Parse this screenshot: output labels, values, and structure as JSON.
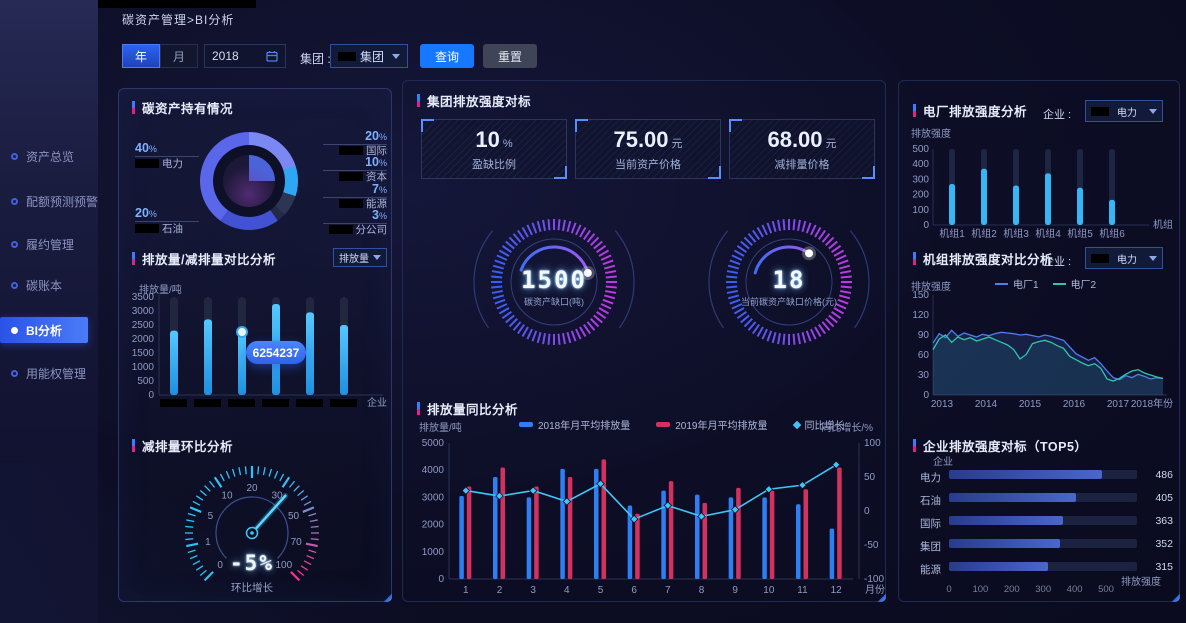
{
  "colors": {
    "accent": "#1677ff",
    "cyan_bar": "#2fa9f2",
    "blue_bar": "#2e7ef5",
    "crimson_bar": "#d3315f",
    "line_cyan": "#3fc6f5",
    "plant1": "#4f7df0",
    "plant2": "#32c5ac",
    "top5_bar": "#3d5bbf",
    "marker_blue": "#3f7bff",
    "marker_pink": "#e0218a"
  },
  "breadcrumb": "碳资产管理>BI分析",
  "filters": {
    "year_btn": "年",
    "month_btn": "月",
    "date_value": "2018",
    "group_label": "集团 :",
    "group_value": "集团",
    "query_btn": "查询",
    "reset_btn": "重置"
  },
  "sidebar": {
    "items": [
      {
        "label": "资产总览",
        "active": false
      },
      {
        "label": "配额预测预警",
        "active": false
      },
      {
        "label": "履约管理",
        "active": false
      },
      {
        "label": "碳账本",
        "active": false
      },
      {
        "label": "BI分析",
        "active": true
      },
      {
        "label": "用能权管理",
        "active": false
      }
    ]
  },
  "left_panel": {
    "holdings_title": "碳资产持有情况",
    "compare_title": "排放量/减排量对比分析",
    "compare_dropdown": "排放量",
    "compare_ylabel": "排放量/吨",
    "compare_xunit": "企业",
    "compare_tooltip": "6254237",
    "mom_title": "减排量环比分析",
    "mom_value": "-5%",
    "mom_caption": "环比增长"
  },
  "middle_panel": {
    "benchmark_title": "集团排放强度对标",
    "cards": [
      {
        "value": "10",
        "unit": "%",
        "label": "盈缺比例"
      },
      {
        "value": "75.00",
        "unit": "元",
        "label": "当前资产价格"
      },
      {
        "value": "68.00",
        "unit": "元",
        "label": "减排量价格"
      }
    ],
    "gauges": [
      {
        "value": "1500",
        "label": "碳资产缺口(吨)"
      },
      {
        "value": "18",
        "label": "当前碳资产缺口价格(元)"
      }
    ],
    "yoy_title": "排放量同比分析",
    "yoy_ylabel_left": "排放量/吨",
    "yoy_ylabel_right": "同比增长/%",
    "yoy_xunit": "月份"
  },
  "right_panel": {
    "plant_title": "电厂排放强度分析",
    "ent_label": "企业 :",
    "ent_value": "电力",
    "plant_ylabel": "排放强度",
    "plant_xunit": "机组",
    "unit_title": "机组排放强度对比分析",
    "unit_ylabel": "排放强度",
    "top5_title": "企业排放强度对标（TOP5）",
    "top5_ylabel": "企业",
    "top5_xunit": "排放强度"
  },
  "chart_data": [
    {
      "id": "holdings_pie",
      "type": "pie",
      "title": "碳资产持有情况",
      "slices": [
        {
          "label": "国际",
          "value": 20,
          "color": "#7b87f2"
        },
        {
          "label": "资本",
          "value": 10,
          "color": "#2fa6f3"
        },
        {
          "label": "能源",
          "value": 7,
          "color": "#2c3554"
        },
        {
          "label": "分公司",
          "value": 3,
          "color": "#222a46"
        },
        {
          "label": "石油",
          "value": 20,
          "color": "#4252d2"
        },
        {
          "label": "电力",
          "value": 40,
          "color": "#5a67ea"
        }
      ]
    },
    {
      "id": "compare_bars",
      "type": "bar",
      "title": "排放量/减排量对比分析",
      "ylabel": "排放量/吨",
      "xunit": "企业",
      "yticks": [
        0,
        500,
        1000,
        1500,
        2000,
        2500,
        3000,
        3500
      ],
      "ylim": [
        0,
        3500
      ],
      "categories": [
        "",
        "",
        "",
        "",
        "",
        ""
      ],
      "values": [
        2300,
        2700,
        2250,
        3250,
        2950,
        2500
      ],
      "tooltip": {
        "index": 2,
        "text": "6254237"
      }
    },
    {
      "id": "mom_gauge",
      "type": "gauge",
      "title": "减排量环比分析",
      "ticks": [
        0,
        1,
        5,
        10,
        20,
        30,
        50,
        70,
        100
      ],
      "value": "-5%",
      "caption": "环比增长",
      "needle_fraction": 0.655
    },
    {
      "id": "deficit_gauges",
      "type": "gauge",
      "items": [
        {
          "value": "1500",
          "label": "碳资产缺口(吨)",
          "arc": [
            160,
            15
          ]
        },
        {
          "value": "18",
          "label": "当前碳资产缺口价格(元)",
          "arc": [
            165,
            55
          ]
        }
      ]
    },
    {
      "id": "yoy_combo",
      "type": "bar+line",
      "title": "排放量同比分析",
      "categories": [
        1,
        2,
        3,
        4,
        5,
        6,
        7,
        8,
        9,
        10,
        11,
        12
      ],
      "series": [
        {
          "name": "2018年月平均排放量",
          "type": "bar",
          "color": "#2e7ef5",
          "values": [
            3050,
            3750,
            3000,
            4050,
            4050,
            2700,
            3250,
            3100,
            3000,
            3000,
            2750,
            1850
          ]
        },
        {
          "name": "2019年月平均排放量",
          "type": "bar",
          "color": "#d3315f",
          "values": [
            3400,
            4100,
            3400,
            3750,
            4400,
            2400,
            3600,
            2800,
            3350,
            3250,
            3300,
            4100
          ]
        },
        {
          "name": "同比增长",
          "type": "line",
          "color": "#3fc6f5",
          "values": [
            30,
            22,
            30,
            14,
            40,
            -12,
            8,
            -8,
            2,
            32,
            38,
            68
          ]
        }
      ],
      "ylim_left": [
        0,
        5000
      ],
      "yticks_left": [
        0,
        1000,
        2000,
        3000,
        4000,
        5000
      ],
      "ylim_right": [
        -100,
        100
      ],
      "yticks_right": [
        -100,
        -50,
        0,
        50,
        100
      ],
      "ylabel_left": "排放量/吨",
      "ylabel_right": "同比增长/%",
      "xunit": "月份"
    },
    {
      "id": "plant_bars",
      "type": "bar",
      "title": "电厂排放强度分析",
      "ylabel": "排放强度",
      "xunit": "机组",
      "categories": [
        "机组1",
        "机组2",
        "机组3",
        "机组4",
        "机组5",
        "机组6"
      ],
      "values": [
        270,
        370,
        260,
        340,
        245,
        165
      ],
      "yticks": [
        0,
        100,
        200,
        300,
        400,
        500
      ],
      "ylim": [
        0,
        500
      ]
    },
    {
      "id": "unit_lines",
      "type": "line",
      "title": "机组排放强度对比分析",
      "ylabel": "排放强度",
      "xticks": [
        "2013",
        "2014",
        "2015",
        "2016",
        "2017",
        "2018年份"
      ],
      "yticks": [
        0,
        30,
        60,
        90,
        120,
        150
      ],
      "ylim": [
        0,
        150
      ],
      "series": [
        {
          "name": "电厂1",
          "color": "#4f7df0",
          "values": [
            78,
            92,
            86,
            97,
            88,
            93,
            90,
            87,
            91,
            89,
            92,
            94,
            93,
            92,
            90,
            91,
            89,
            87,
            90,
            88,
            85,
            82,
            72,
            62,
            57,
            52,
            56,
            47,
            36,
            26,
            23,
            29,
            26,
            31,
            28,
            24,
            26,
            25
          ]
        },
        {
          "name": "电厂2",
          "color": "#32c5ac",
          "values": [
            68,
            84,
            90,
            79,
            87,
            83,
            86,
            81,
            84,
            87,
            83,
            79,
            75,
            68,
            54,
            61,
            77,
            80,
            82,
            79,
            74,
            70,
            58,
            53,
            48,
            44,
            47,
            40,
            24,
            21,
            25,
            31,
            36,
            38,
            33,
            30,
            27,
            25
          ]
        }
      ]
    },
    {
      "id": "top5_bars",
      "type": "bar",
      "title": "企业排放强度对标（TOP5）",
      "ylabel": "企业",
      "xunit": "排放强度",
      "categories": [
        "电力",
        "石油",
        "国际",
        "集团",
        "能源"
      ],
      "values": [
        486,
        405,
        363,
        352,
        315
      ],
      "xticks": [
        0,
        100,
        200,
        300,
        400,
        500
      ],
      "xlim": [
        0,
        500
      ]
    }
  ]
}
